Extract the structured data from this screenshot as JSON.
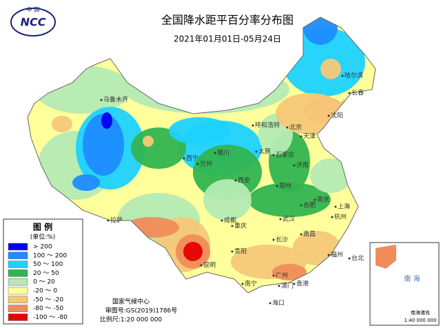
{
  "header": {
    "logo_top": "中 国",
    "logo_text": "NCC",
    "title": "全国降水距平百分率分布图",
    "subtitle": "2021年01月01日-05月24日"
  },
  "legend": {
    "title": "图 例",
    "unit": "(单位:%)",
    "items": [
      {
        "label": "> 200",
        "color": "#0000f0"
      },
      {
        "label": "100 ～ 200",
        "color": "#1e8cff"
      },
      {
        "label": "50 ～ 100",
        "color": "#1ed2ff"
      },
      {
        "label": "20 ～ 50",
        "color": "#32b450"
      },
      {
        "label": "0 ～ 20",
        "color": "#b4ebb4"
      },
      {
        "label": "-20 ～ 0",
        "color": "#ffff9b"
      },
      {
        "label": "-50 ～ -20",
        "color": "#f5c878"
      },
      {
        "label": "-80 ～ -50",
        "color": "#f08c5a"
      },
      {
        "label": "-100 ～ -80",
        "color": "#e60000"
      }
    ]
  },
  "cities": [
    "乌鲁木齐",
    "哈尔滨",
    "长春",
    "沈阳",
    "呼和浩特",
    "北京",
    "天津",
    "石家庄",
    "太原",
    "银川",
    "兰州",
    "西宁",
    "济南",
    "郑州",
    "西安",
    "南京",
    "合肥",
    "上海",
    "杭州",
    "武汉",
    "成都",
    "重庆",
    "拉萨",
    "长沙",
    "南昌",
    "福州",
    "台北",
    "贵阳",
    "昆明",
    "南宁",
    "广州",
    "香港",
    "澳门",
    "海口"
  ],
  "credits": {
    "org": "国家气候中心",
    "approval": "审图号:GS(2019)1786号",
    "scale": "比例尺:1:20 000 000"
  },
  "inset": {
    "title": "南海诸岛",
    "sea": "南 海",
    "scale": "1:40 000 000"
  }
}
